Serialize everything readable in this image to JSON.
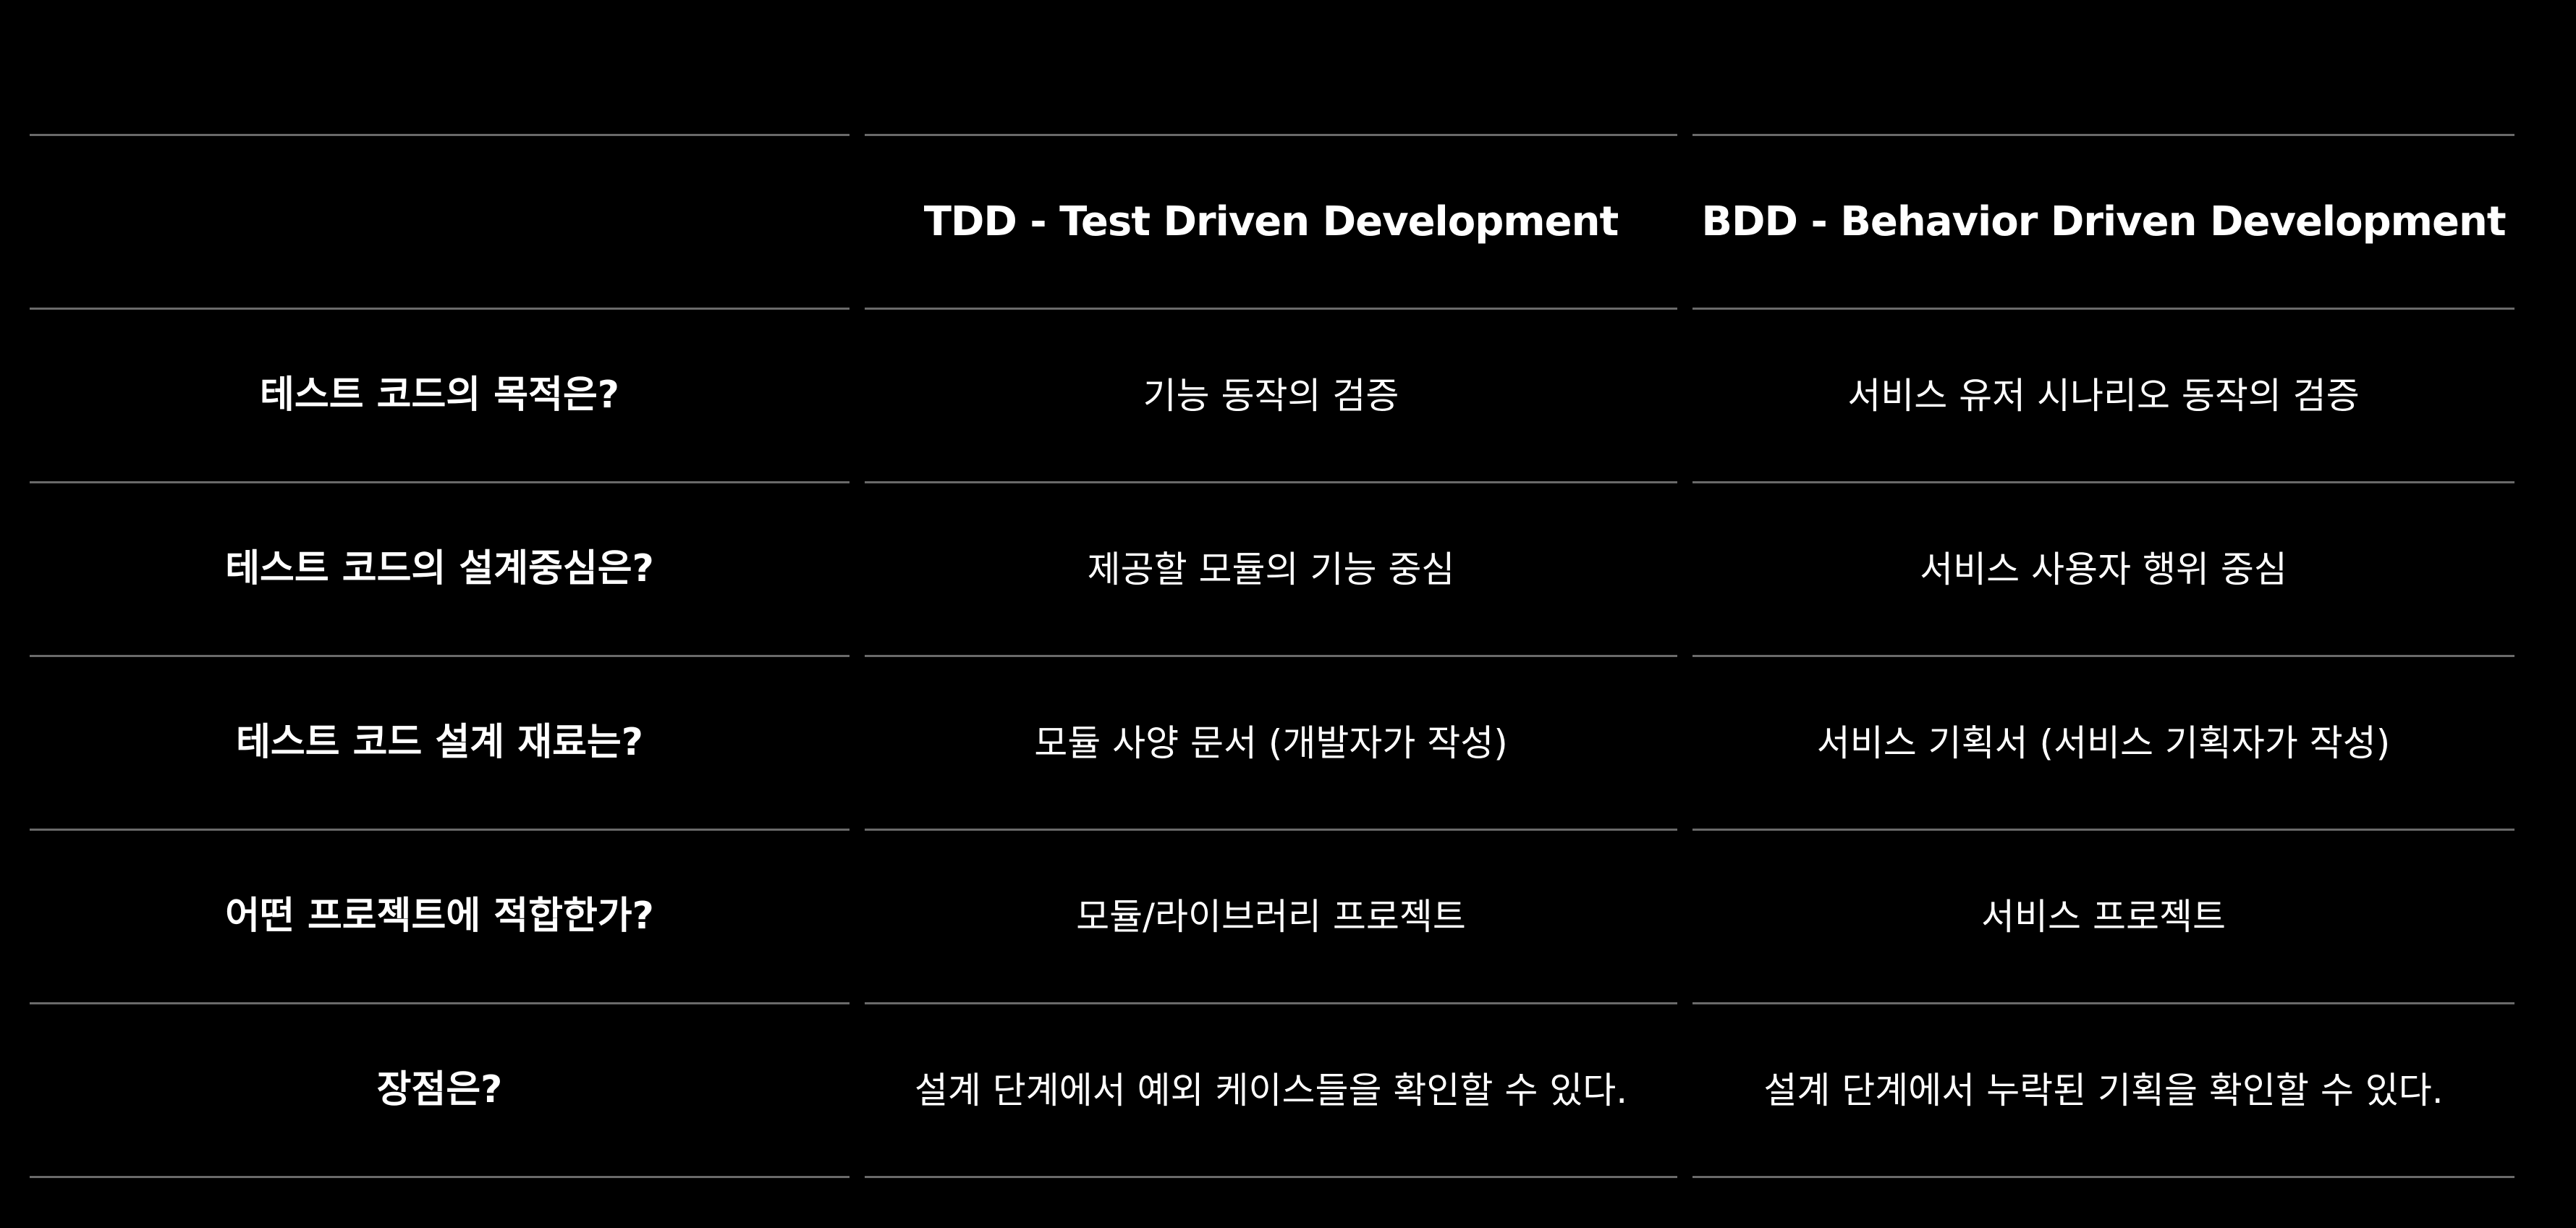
{
  "table": {
    "headers": [
      "",
      "TDD - Test Driven Development",
      "BDD - Behavior Driven Development"
    ],
    "rows": [
      {
        "label": "테스트 코드의 목적은?",
        "tdd": "기능 동작의 검증",
        "bdd": "서비스 유저 시나리오 동작의 검증"
      },
      {
        "label": "테스트 코드의 설계중심은?",
        "tdd": "제공할 모듈의 기능 중심",
        "bdd": "서비스 사용자 행위 중심"
      },
      {
        "label": "테스트 코드 설계 재료는?",
        "tdd": "모듈 사양 문서 (개발자가 작성)",
        "bdd": "서비스 기획서 (서비스 기획자가 작성)"
      },
      {
        "label": "어떤 프로젝트에 적합한가?",
        "tdd": "모듈/라이브러리 프로젝트",
        "bdd": "서비스 프로젝트"
      },
      {
        "label": "장점은?",
        "tdd": "설계 단계에서 예외 케이스들을 확인할 수 있다.",
        "bdd": "설계 단계에서 누락된 기획을 확인할 수 있다."
      }
    ]
  },
  "colors": {
    "background": "#000000",
    "text": "#ffffff",
    "divider": "#6a6a6a"
  }
}
